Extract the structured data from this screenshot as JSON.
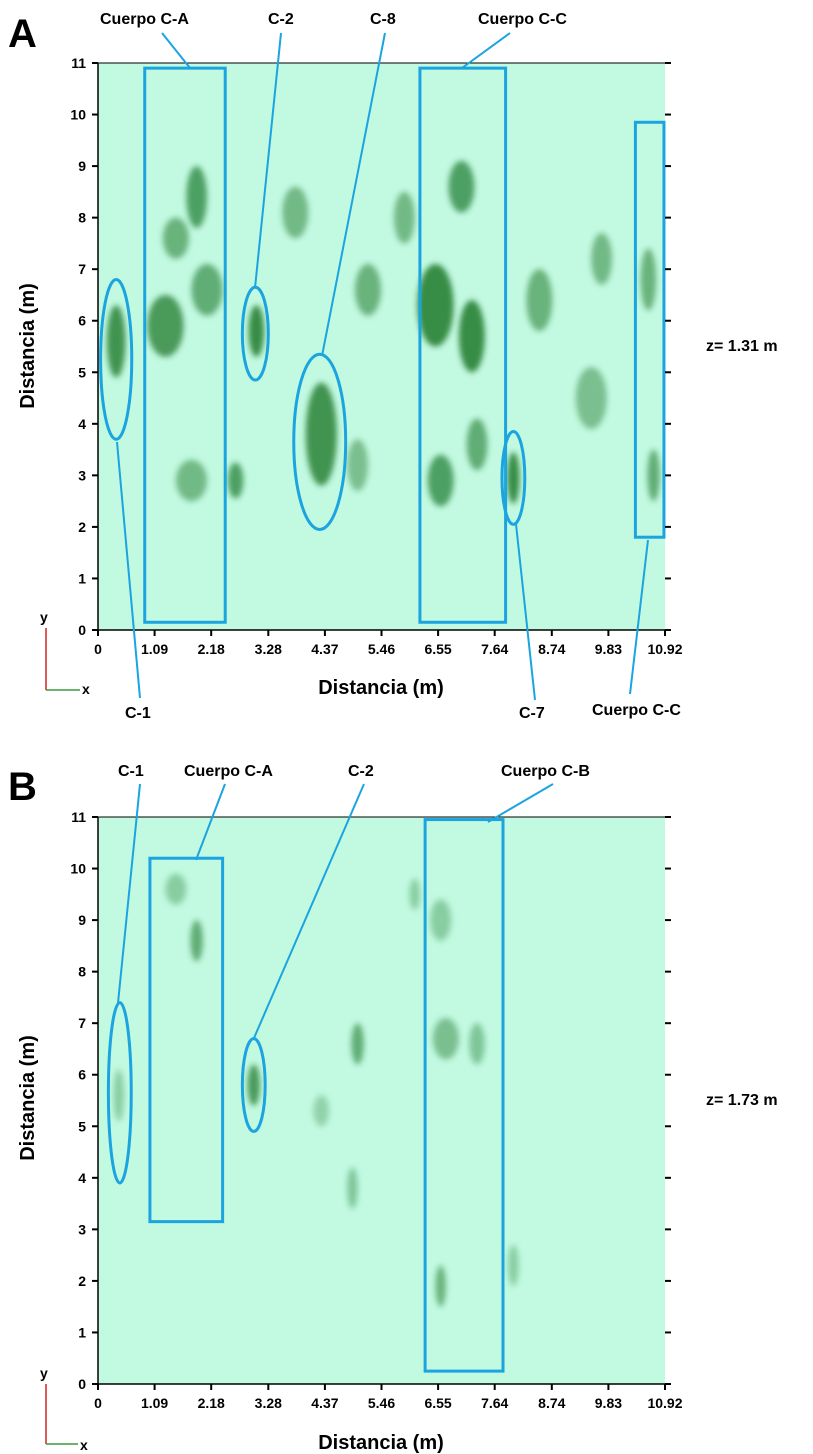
{
  "colors": {
    "background": "#c2f9e1",
    "anomaly": "#1f7a2c",
    "annotation": "#1ba4df"
  },
  "chart_data": [
    {
      "panel": "A",
      "type": "heatmap",
      "depth_label": "z= 1.31 m",
      "xlabel": "Distancia (m)",
      "ylabel": "Distancia (m)",
      "x_ticks": [
        "0",
        "1.09",
        "2.18",
        "3.28",
        "4.37",
        "5.46",
        "6.55",
        "7.64",
        "8.74",
        "9.83",
        "10.92"
      ],
      "y_ticks": [
        "0",
        "1",
        "2",
        "3",
        "4",
        "5",
        "6",
        "7",
        "8",
        "9",
        "10",
        "11"
      ],
      "xlim": [
        0,
        10.92
      ],
      "ylim": [
        0,
        11
      ],
      "axis_glyph_y": "y",
      "axis_glyph_x": "x",
      "annotations": [
        {
          "label": "Cuerpo C-A",
          "shape": "rect",
          "x0": 0.9,
          "x1": 2.45,
          "y0": 0.15,
          "y1": 10.9
        },
        {
          "label": "C-2",
          "shape": "ellipse",
          "cx": 3.03,
          "cy": 5.75,
          "rx": 0.25,
          "ry": 0.9
        },
        {
          "label": "C-8",
          "shape": "ellipse",
          "cx": 4.27,
          "cy": 3.65,
          "rx": 0.5,
          "ry": 1.7
        },
        {
          "label": "Cuerpo C-C",
          "shape": "rect",
          "x0": 6.2,
          "x1": 7.85,
          "y0": 0.15,
          "y1": 10.9
        },
        {
          "label": "C-1",
          "shape": "ellipse",
          "cx": 0.35,
          "cy": 5.25,
          "rx": 0.3,
          "ry": 1.55
        },
        {
          "label": "C-7",
          "shape": "ellipse",
          "cx": 8.0,
          "cy": 2.95,
          "rx": 0.22,
          "ry": 0.9
        },
        {
          "label": "Cuerpo C-C",
          "shape": "rect",
          "x0": 10.35,
          "x1": 10.9,
          "y0": 1.8,
          "y1": 9.85
        }
      ],
      "anomalies": [
        {
          "x": 0.35,
          "y": 5.6,
          "sx": 0.18,
          "sy": 0.7,
          "i": 0.8
        },
        {
          "x": 1.3,
          "y": 5.9,
          "sx": 0.35,
          "sy": 0.6,
          "i": 0.75
        },
        {
          "x": 1.9,
          "y": 8.4,
          "sx": 0.2,
          "sy": 0.6,
          "i": 0.7
        },
        {
          "x": 2.1,
          "y": 6.6,
          "sx": 0.3,
          "sy": 0.5,
          "i": 0.6
        },
        {
          "x": 1.5,
          "y": 7.6,
          "sx": 0.25,
          "sy": 0.4,
          "i": 0.55
        },
        {
          "x": 1.8,
          "y": 2.9,
          "sx": 0.3,
          "sy": 0.4,
          "i": 0.5
        },
        {
          "x": 2.65,
          "y": 2.9,
          "sx": 0.15,
          "sy": 0.35,
          "i": 0.7
        },
        {
          "x": 3.05,
          "y": 5.8,
          "sx": 0.15,
          "sy": 0.5,
          "i": 0.85
        },
        {
          "x": 3.8,
          "y": 8.1,
          "sx": 0.25,
          "sy": 0.5,
          "i": 0.5
        },
        {
          "x": 4.3,
          "y": 3.8,
          "sx": 0.3,
          "sy": 1.0,
          "i": 0.8
        },
        {
          "x": 5.2,
          "y": 6.6,
          "sx": 0.25,
          "sy": 0.5,
          "i": 0.55
        },
        {
          "x": 5.0,
          "y": 3.2,
          "sx": 0.2,
          "sy": 0.5,
          "i": 0.45
        },
        {
          "x": 5.9,
          "y": 8.0,
          "sx": 0.2,
          "sy": 0.5,
          "i": 0.5
        },
        {
          "x": 6.5,
          "y": 6.3,
          "sx": 0.35,
          "sy": 0.8,
          "i": 0.85
        },
        {
          "x": 7.2,
          "y": 5.7,
          "sx": 0.25,
          "sy": 0.7,
          "i": 0.85
        },
        {
          "x": 7.0,
          "y": 8.6,
          "sx": 0.25,
          "sy": 0.5,
          "i": 0.7
        },
        {
          "x": 6.6,
          "y": 2.9,
          "sx": 0.25,
          "sy": 0.5,
          "i": 0.7
        },
        {
          "x": 7.3,
          "y": 3.6,
          "sx": 0.2,
          "sy": 0.5,
          "i": 0.6
        },
        {
          "x": 8.0,
          "y": 2.95,
          "sx": 0.12,
          "sy": 0.5,
          "i": 0.85
        },
        {
          "x": 8.5,
          "y": 6.4,
          "sx": 0.25,
          "sy": 0.6,
          "i": 0.55
        },
        {
          "x": 9.5,
          "y": 4.5,
          "sx": 0.3,
          "sy": 0.6,
          "i": 0.45
        },
        {
          "x": 9.7,
          "y": 7.2,
          "sx": 0.2,
          "sy": 0.5,
          "i": 0.5
        },
        {
          "x": 10.6,
          "y": 6.8,
          "sx": 0.15,
          "sy": 0.6,
          "i": 0.55
        },
        {
          "x": 10.7,
          "y": 3.0,
          "sx": 0.12,
          "sy": 0.5,
          "i": 0.6
        }
      ]
    },
    {
      "panel": "B",
      "type": "heatmap",
      "depth_label": "z= 1.73 m",
      "xlabel": "Distancia (m)",
      "ylabel": "Distancia (m)",
      "x_ticks": [
        "0",
        "1.09",
        "2.18",
        "3.28",
        "4.37",
        "5.46",
        "6.55",
        "7.64",
        "8.74",
        "9.83",
        "10.92"
      ],
      "y_ticks": [
        "0",
        "1",
        "2",
        "3",
        "4",
        "5",
        "6",
        "7",
        "8",
        "9",
        "10",
        "11"
      ],
      "xlim": [
        0,
        10.92
      ],
      "ylim": [
        0,
        11
      ],
      "axis_glyph_y": "y",
      "axis_glyph_x": "x",
      "annotations": [
        {
          "label": "C-1",
          "shape": "ellipse",
          "cx": 0.42,
          "cy": 5.65,
          "rx": 0.22,
          "ry": 1.75
        },
        {
          "label": "Cuerpo C-A",
          "shape": "rect",
          "x0": 1.0,
          "x1": 2.4,
          "y0": 3.15,
          "y1": 10.2
        },
        {
          "label": "C-2",
          "shape": "ellipse",
          "cx": 3.0,
          "cy": 5.8,
          "rx": 0.22,
          "ry": 0.9
        },
        {
          "label": "Cuerpo C-B",
          "shape": "rect",
          "x0": 6.3,
          "x1": 7.8,
          "y0": 0.25,
          "y1": 10.95
        }
      ],
      "anomalies": [
        {
          "x": 1.9,
          "y": 8.6,
          "sx": 0.12,
          "sy": 0.4,
          "i": 0.6
        },
        {
          "x": 1.5,
          "y": 9.6,
          "sx": 0.2,
          "sy": 0.3,
          "i": 0.35
        },
        {
          "x": 0.4,
          "y": 5.6,
          "sx": 0.1,
          "sy": 0.5,
          "i": 0.35
        },
        {
          "x": 3.0,
          "y": 5.8,
          "sx": 0.12,
          "sy": 0.4,
          "i": 0.75
        },
        {
          "x": 5.0,
          "y": 6.6,
          "sx": 0.12,
          "sy": 0.4,
          "i": 0.6
        },
        {
          "x": 4.9,
          "y": 3.8,
          "sx": 0.1,
          "sy": 0.4,
          "i": 0.4
        },
        {
          "x": 6.6,
          "y": 1.9,
          "sx": 0.1,
          "sy": 0.4,
          "i": 0.55
        },
        {
          "x": 6.7,
          "y": 6.7,
          "sx": 0.25,
          "sy": 0.4,
          "i": 0.45
        },
        {
          "x": 7.3,
          "y": 6.6,
          "sx": 0.15,
          "sy": 0.4,
          "i": 0.4
        },
        {
          "x": 6.6,
          "y": 9.0,
          "sx": 0.2,
          "sy": 0.4,
          "i": 0.35
        },
        {
          "x": 4.3,
          "y": 5.3,
          "sx": 0.15,
          "sy": 0.3,
          "i": 0.3
        },
        {
          "x": 8.0,
          "y": 2.3,
          "sx": 0.1,
          "sy": 0.4,
          "i": 0.35
        },
        {
          "x": 6.1,
          "y": 9.5,
          "sx": 0.1,
          "sy": 0.3,
          "i": 0.35
        }
      ]
    }
  ]
}
